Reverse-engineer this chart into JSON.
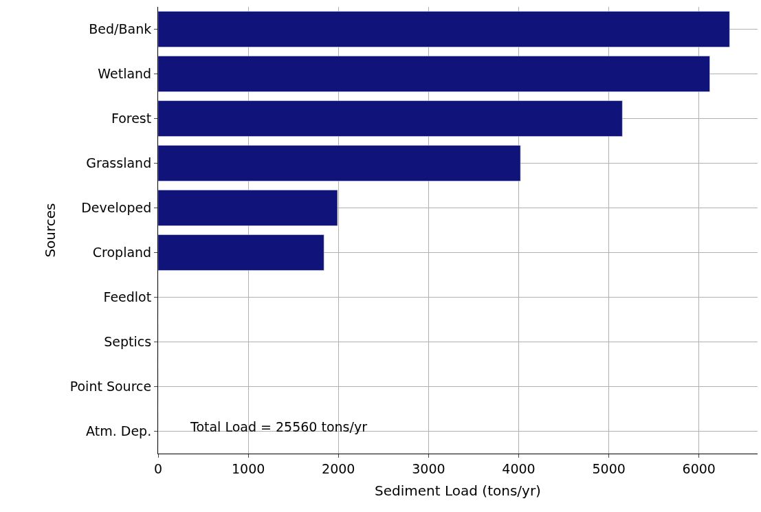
{
  "chart_data": {
    "type": "bar",
    "orientation": "horizontal",
    "categories": [
      "Bed/Bank",
      "Wetland",
      "Forest",
      "Grassland",
      "Developed",
      "Cropland",
      "Feedlot",
      "Septics",
      "Point Source",
      "Atm. Dep."
    ],
    "values": [
      6340,
      6120,
      5150,
      4020,
      1990,
      1840,
      0,
      0,
      0,
      0
    ],
    "color": "#10137a",
    "xlim": [
      0,
      6650
    ],
    "xticks": [
      0,
      1000,
      2000,
      3000,
      4000,
      5000,
      6000
    ],
    "xlabel": "Sediment Load (tons/yr)",
    "ylabel": "Sources",
    "annotations": [
      "Total Load = 25560 tons/yr"
    ],
    "grid": true
  }
}
